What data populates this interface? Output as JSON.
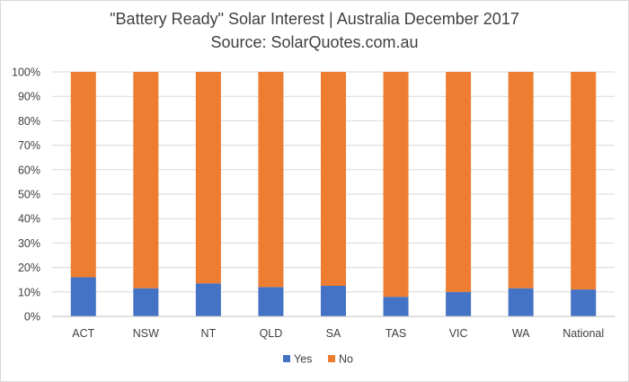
{
  "chart_data": {
    "type": "bar",
    "stacked": true,
    "percent": true,
    "title": "\"Battery Ready\" Solar Interest  |  Australia December 2017",
    "subtitle": "Source: SolarQuotes.com.au",
    "categories": [
      "ACT",
      "NSW",
      "NT",
      "QLD",
      "SA",
      "TAS",
      "VIC",
      "WA",
      "National"
    ],
    "y_ticks": [
      "0%",
      "10%",
      "20%",
      "30%",
      "40%",
      "50%",
      "60%",
      "70%",
      "80%",
      "90%",
      "100%"
    ],
    "ylim": [
      0,
      100
    ],
    "grid": true,
    "legend_position": "bottom",
    "series": [
      {
        "name": "Yes",
        "color": "#4472c4",
        "values": [
          16,
          11.5,
          13.5,
          12,
          12.5,
          8,
          10,
          11.5,
          11
        ]
      },
      {
        "name": "No",
        "color": "#ed7d31",
        "values": [
          84,
          88.5,
          86.5,
          88,
          87.5,
          92,
          90,
          88.5,
          89
        ]
      }
    ]
  }
}
